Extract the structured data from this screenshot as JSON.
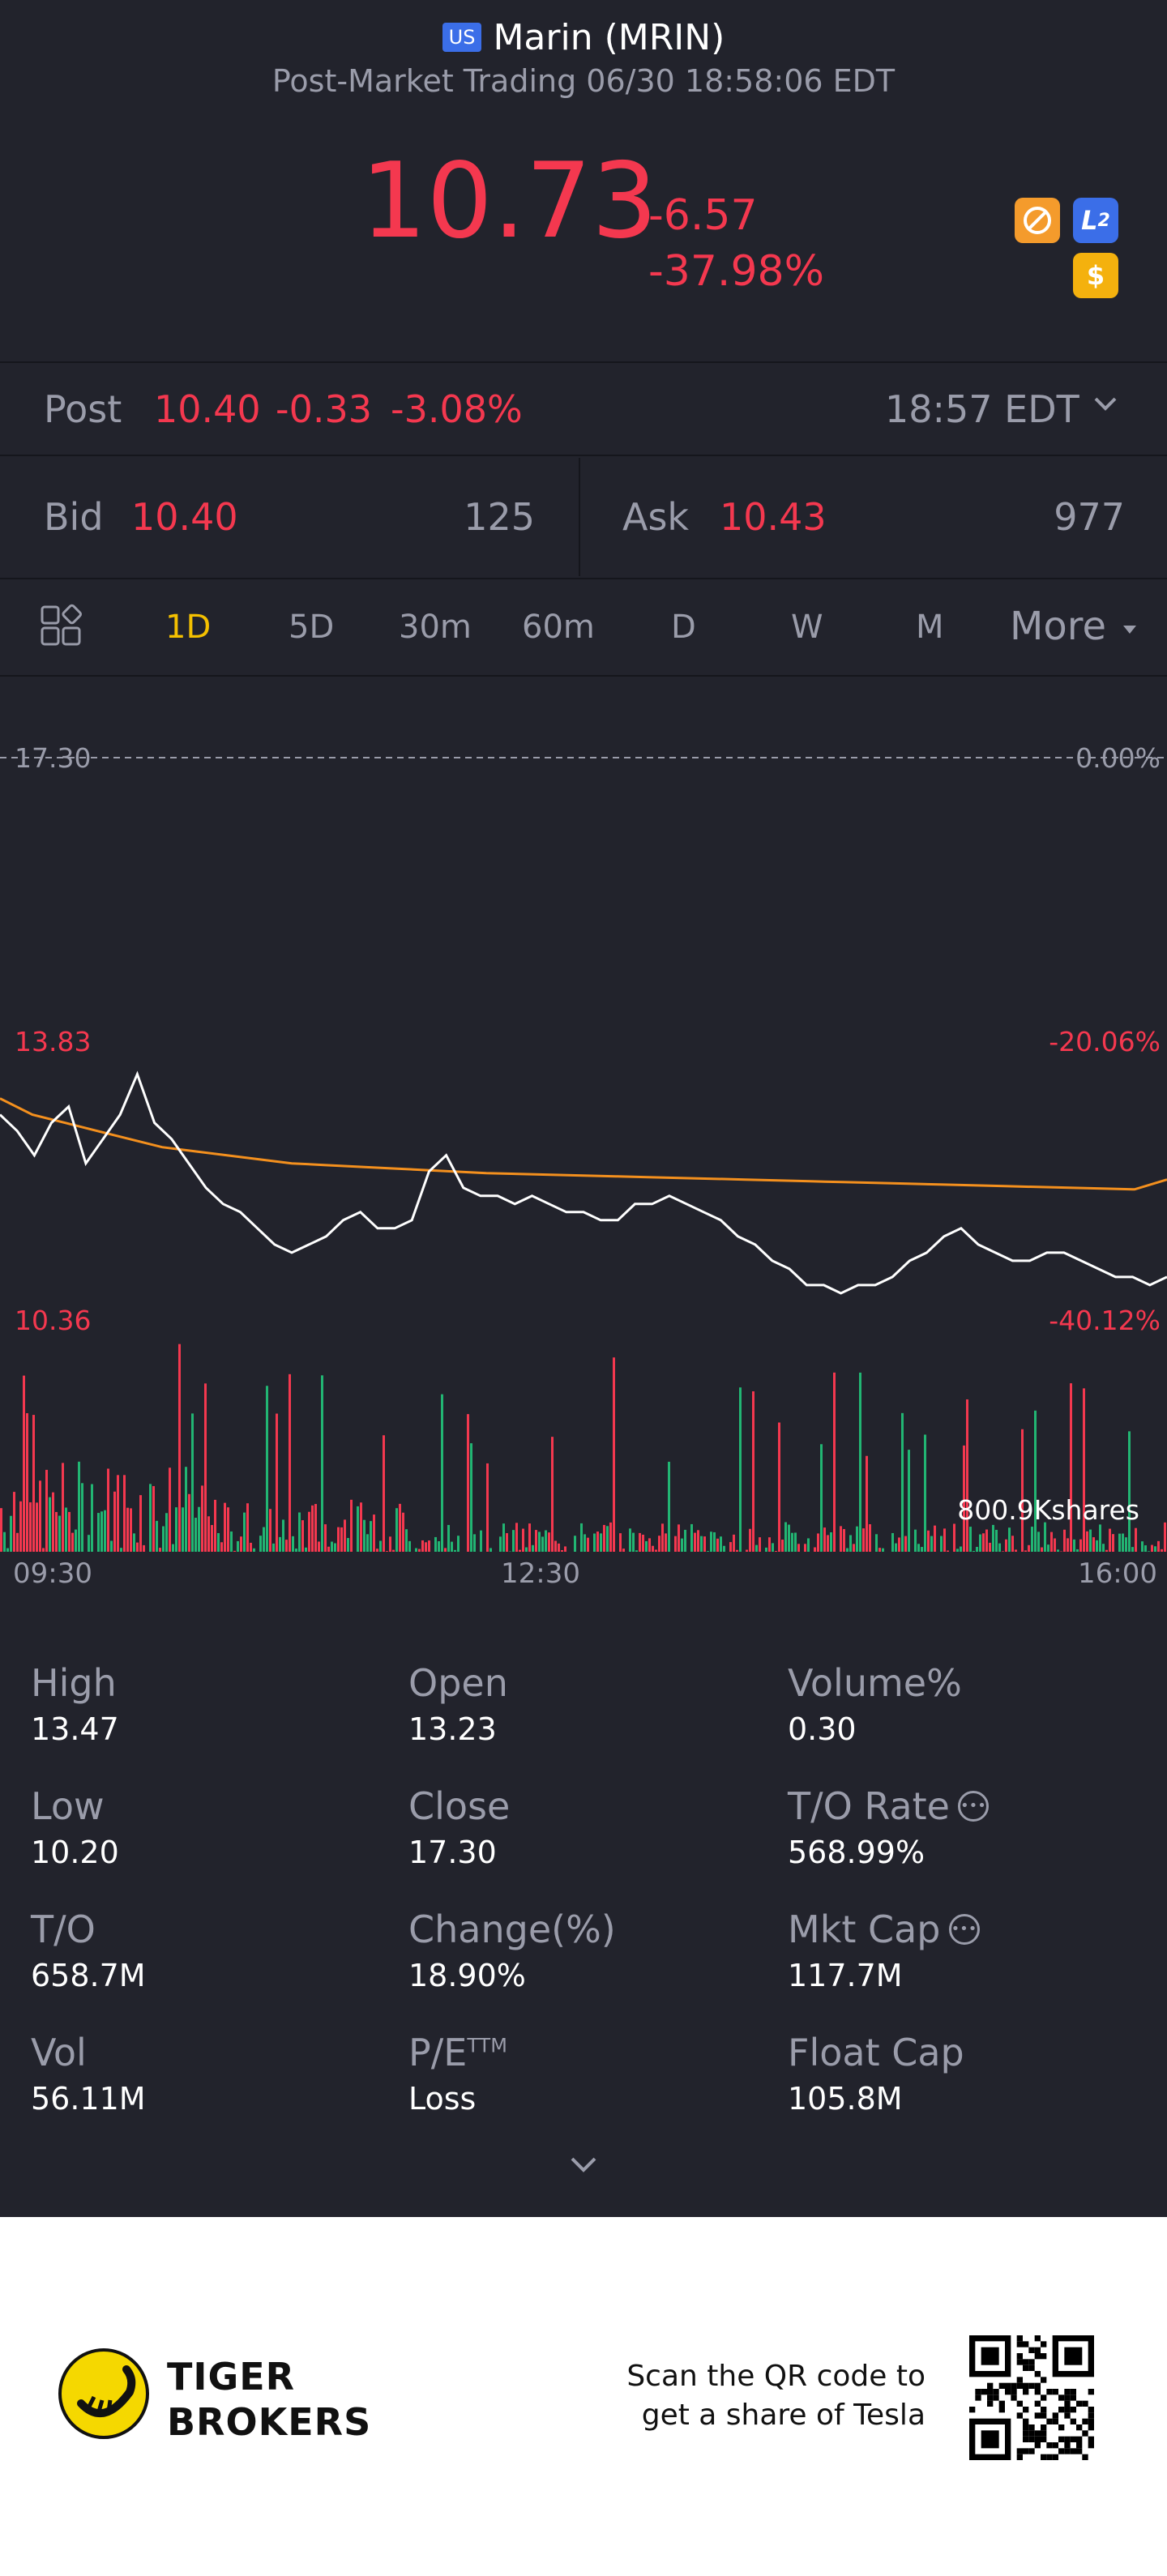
{
  "header": {
    "market_badge": "US",
    "title": "Marin (MRIN)",
    "subtitle": "Post-Market Trading 06/30 18:58:06 EDT",
    "price": "10.73",
    "change": "-6.57",
    "change_pct": "-37.98%",
    "icons": [
      "no-sign-icon",
      "level2-icon",
      "dollar-icon"
    ]
  },
  "post": {
    "label": "Post",
    "price": "10.40",
    "change": "-0.33",
    "change_pct": "-3.08%",
    "time": "18:57 EDT"
  },
  "bid_ask": {
    "bid_label": "Bid",
    "bid_price": "10.40",
    "bid_size": "125",
    "ask_label": "Ask",
    "ask_price": "10.43",
    "ask_size": "977"
  },
  "tabs": {
    "items": [
      "1D",
      "5D",
      "30m",
      "60m",
      "D",
      "W",
      "M"
    ],
    "active": "1D",
    "more": "More"
  },
  "chart": {
    "ref_price_label": "17.30",
    "ref_pct_label": "0.00%",
    "mid_price_label": "13.83",
    "mid_pct_label": "-20.06%",
    "low_price_label": "10.36",
    "low_pct_label": "-40.12%",
    "volume_label": "800.9Kshares",
    "x_labels": [
      "09:30",
      "12:30",
      "16:00"
    ]
  },
  "chart_data": {
    "type": "line",
    "x_range": [
      "09:30",
      "16:00"
    ],
    "ylim": [
      10.36,
      17.3
    ],
    "reference": 17.3,
    "series": [
      {
        "name": "",
        "color": "#ffffff",
        "values": [
          12.9,
          12.7,
          12.4,
          12.8,
          13.0,
          12.3,
          12.6,
          12.9,
          13.4,
          12.8,
          12.6,
          12.3,
          12.0,
          11.8,
          11.7,
          11.5,
          11.3,
          11.2,
          11.3,
          11.4,
          11.6,
          11.7,
          11.5,
          11.5,
          11.6,
          12.2,
          12.4,
          12.0,
          11.9,
          11.9,
          11.8,
          11.9,
          11.8,
          11.7,
          11.7,
          11.6,
          11.6,
          11.8,
          11.8,
          11.9,
          11.8,
          11.7,
          11.6,
          11.4,
          11.3,
          11.1,
          11.0,
          10.8,
          10.8,
          10.7,
          10.8,
          10.8,
          10.9,
          11.1,
          11.2,
          11.4,
          11.5,
          11.3,
          11.2,
          11.1,
          11.1,
          11.2,
          11.2,
          11.1,
          11.0,
          10.9,
          10.9,
          10.8,
          10.9
        ]
      },
      {
        "name": "",
        "color": "#f4901e",
        "values": [
          13.1,
          12.9,
          12.8,
          12.7,
          12.6,
          12.5,
          12.45,
          12.4,
          12.35,
          12.3,
          12.28,
          12.26,
          12.24,
          12.22,
          12.2,
          12.18,
          12.17,
          12.16,
          12.15,
          12.14,
          12.13,
          12.12,
          12.11,
          12.1,
          12.09,
          12.08,
          12.07,
          12.06,
          12.05,
          12.04,
          12.03,
          12.02,
          12.01,
          12.0,
          11.99,
          11.98,
          12.1
        ]
      }
    ],
    "volume_max": "800.9Kshares"
  },
  "stats": [
    {
      "label": "High",
      "value": "13.47"
    },
    {
      "label": "Open",
      "value": "13.23"
    },
    {
      "label": "Volume%",
      "value": "0.30"
    },
    {
      "label": "Low",
      "value": "10.20"
    },
    {
      "label": "Close",
      "value": "17.30"
    },
    {
      "label": "T/O Rate",
      "value": "568.99%"
    },
    {
      "label": "T/O",
      "value": "658.7M"
    },
    {
      "label": "Change(%)",
      "value": "18.90%"
    },
    {
      "label": "Mkt Cap",
      "value": "117.7M"
    },
    {
      "label": "Vol",
      "value": "56.11M"
    },
    {
      "label": "P/E",
      "label_sup": "TTM",
      "value": "Loss"
    },
    {
      "label": "Float Cap",
      "value": "105.8M"
    }
  ],
  "footer": {
    "brand_line1": "TIGER",
    "brand_line2": "BROKERS",
    "qr_text_line1": "Scan the QR code to",
    "qr_text_line2": "get a share of Tesla"
  },
  "colors": {
    "background": "#22232c",
    "down": "#f4384f",
    "up": "#22b573",
    "accent": "#f4c000",
    "avg_line": "#f4901e"
  }
}
